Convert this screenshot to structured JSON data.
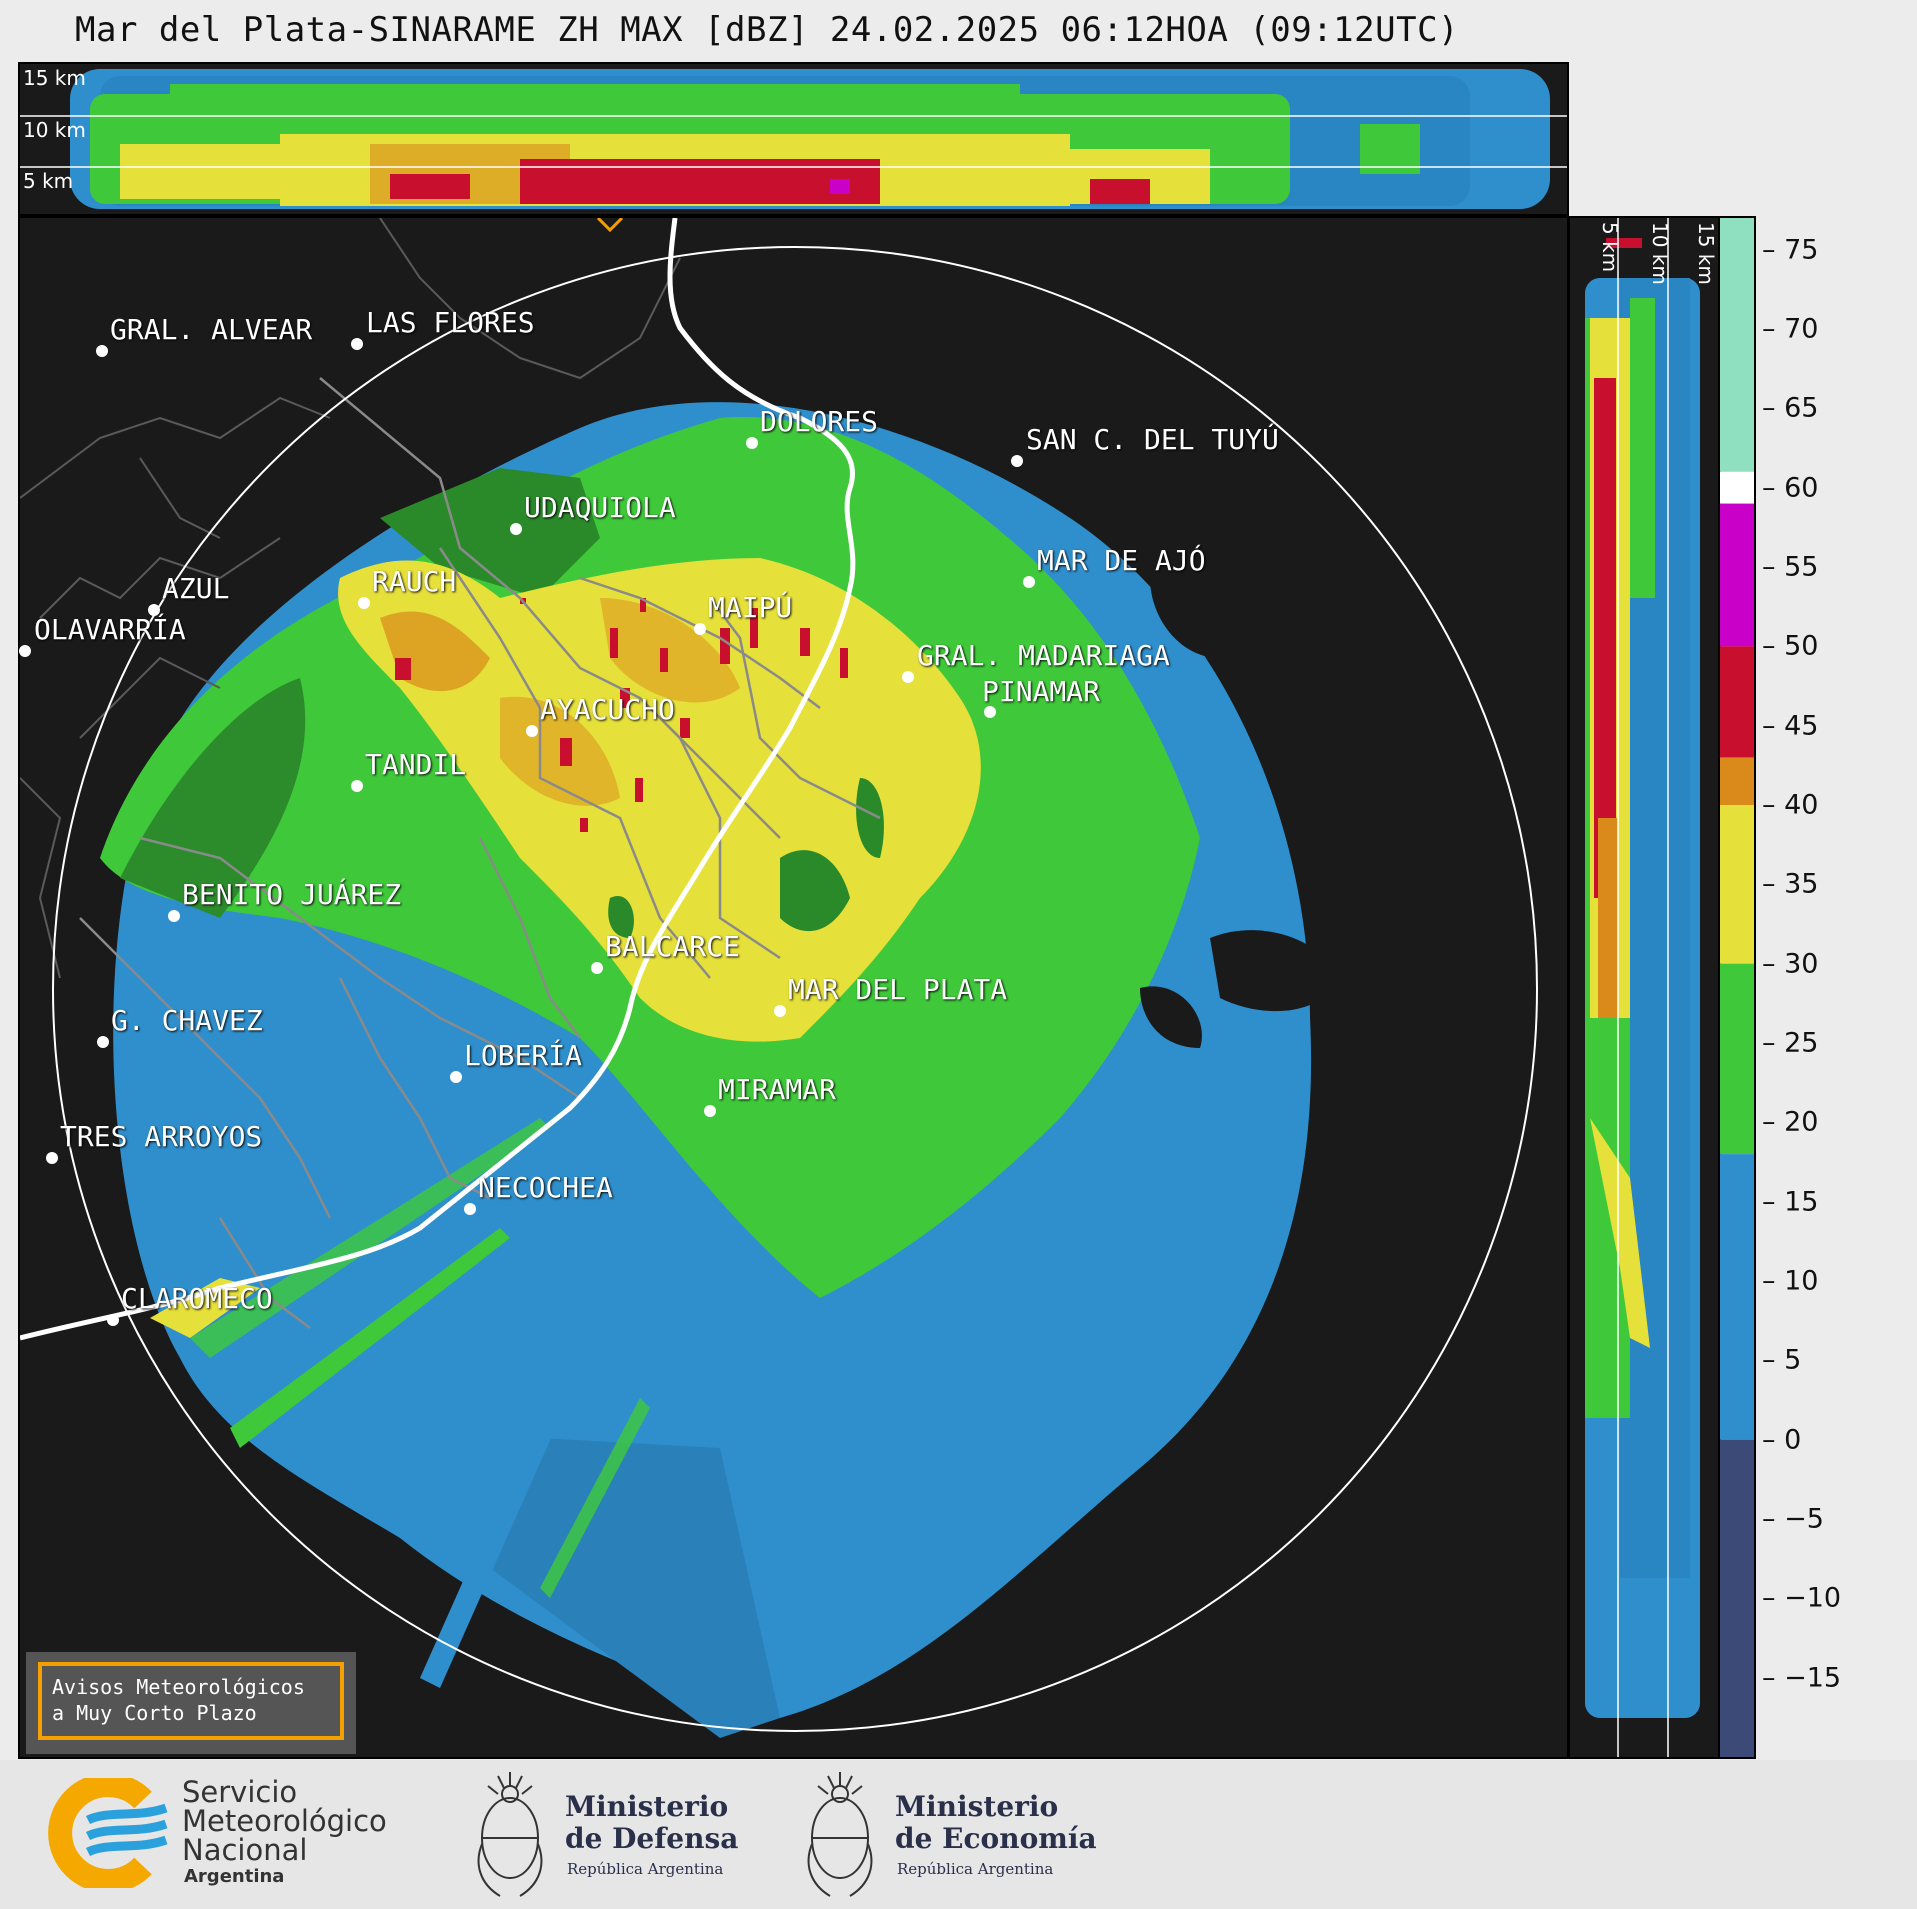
{
  "title": "Mar del Plata-SINARAME ZH MAX [dBZ] 24.02.2025 06:12HOA (09:12UTC)",
  "top_panel": {
    "height_labels": [
      "15 km",
      "10 km",
      "5 km"
    ]
  },
  "side_panel": {
    "height_labels": [
      "5 km",
      "10 km",
      "15 km"
    ]
  },
  "colorbar": {
    "unit": "dBZ",
    "ticks": [
      "75",
      "70",
      "65",
      "60",
      "55",
      "50",
      "45",
      "40",
      "35",
      "30",
      "25",
      "20",
      "15",
      "10",
      "5",
      "0",
      "−5",
      "−10",
      "−15"
    ],
    "range": [
      -20,
      77
    ],
    "colors": {
      "below_0": "#3c4a78",
      "0_to_18": "#2f8fcc",
      "18_to_30": "#3fc93a",
      "30_to_40": "#e6e03a",
      "40_to_43": "#d98a1a",
      "43_to_50": "#c8102e",
      "50_to_59": "#c800c8",
      "59_to_61": "#ffffff",
      "61_to_77": "#8fe0c0"
    }
  },
  "cities": [
    {
      "name": "GRAL. ALVEAR"
    },
    {
      "name": "LAS FLORES"
    },
    {
      "name": "DOLORES"
    },
    {
      "name": "SAN C. DEL TUYÚ"
    },
    {
      "name": "UDAQUIOLA"
    },
    {
      "name": "MAR DE AJÓ"
    },
    {
      "name": "AZUL"
    },
    {
      "name": "RAUCH"
    },
    {
      "name": "MAIPÚ"
    },
    {
      "name": "OLAVARRÍA"
    },
    {
      "name": "GRAL. MADARIAGA"
    },
    {
      "name": "PINAMAR"
    },
    {
      "name": "AYACUCHO"
    },
    {
      "name": "TANDIL"
    },
    {
      "name": "BENITO JUÁREZ"
    },
    {
      "name": "BALCARCE"
    },
    {
      "name": "MAR DEL PLATA"
    },
    {
      "name": "G. CHAVEZ"
    },
    {
      "name": "LOBERÍA"
    },
    {
      "name": "MIRAMAR"
    },
    {
      "name": "TRES ARROYOS"
    },
    {
      "name": "NECOCHEA"
    },
    {
      "name": "CLAROMECO"
    }
  ],
  "avisos": {
    "line1": "Avisos Meteorológicos",
    "line2": "a Muy Corto Plazo"
  },
  "logos": {
    "smn": {
      "line1": "Servicio",
      "line2": "Meteorológico",
      "line3": "Nacional",
      "line4": "Argentina"
    },
    "defensa": {
      "line1": "Ministerio",
      "line2": "de Defensa",
      "line3": "República Argentina"
    },
    "economia": {
      "line1": "Ministerio",
      "line2": "de Economía",
      "line3": "República Argentina"
    }
  }
}
